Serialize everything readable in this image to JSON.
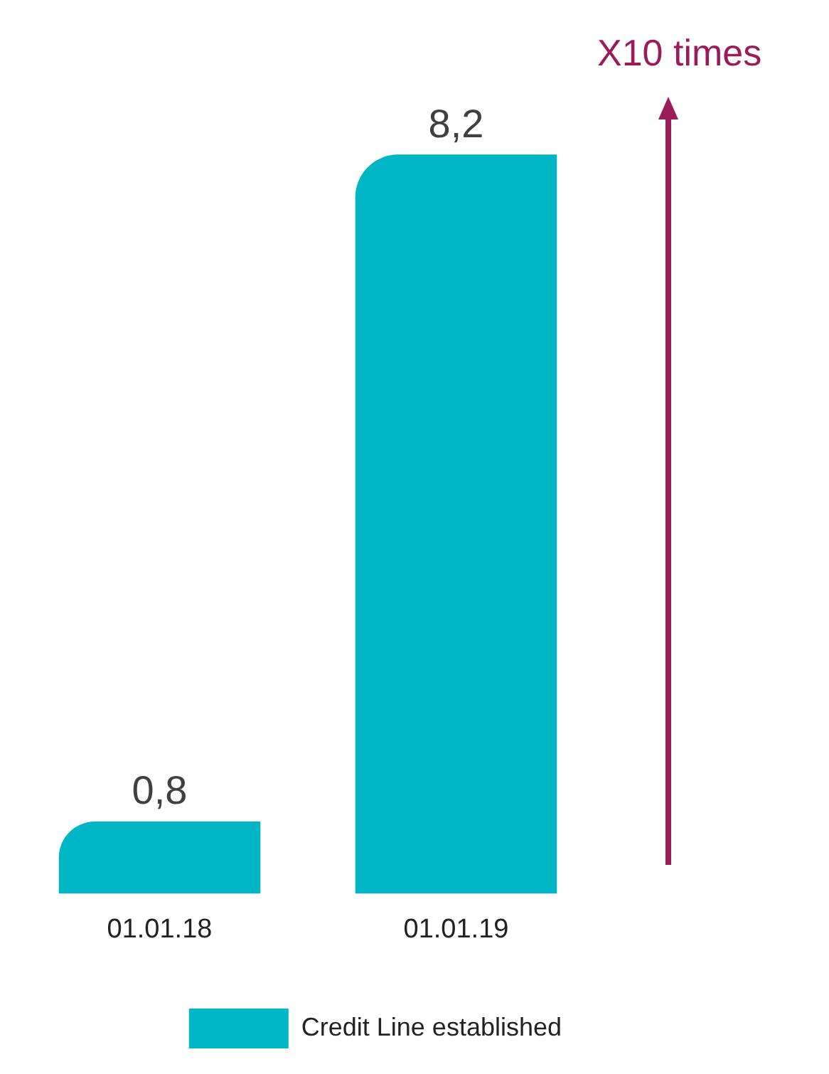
{
  "chart_data": {
    "type": "bar",
    "categories": [
      "01.01.18",
      "01.01.19"
    ],
    "series": [
      {
        "name": "Credit Line established",
        "color": "#00b6c4",
        "values": [
          0.8,
          8.2
        ],
        "value_labels": [
          "0,8",
          "8,2"
        ]
      }
    ],
    "annotations": [
      "X10 times"
    ],
    "legend": "bottom right",
    "grid": false
  }
}
